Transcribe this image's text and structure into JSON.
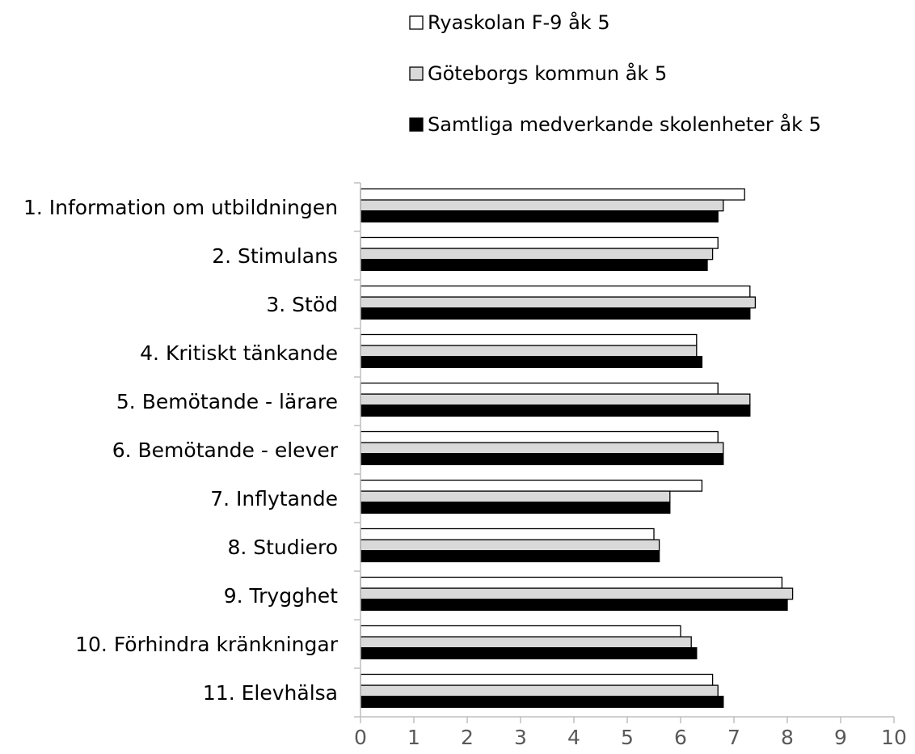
{
  "chart_data": {
    "type": "bar",
    "orientation": "horizontal",
    "title": "",
    "xlabel": "",
    "ylabel": "",
    "xlim": [
      0,
      10
    ],
    "x_ticks": [
      "0",
      "1",
      "2",
      "3",
      "4",
      "5",
      "6",
      "7",
      "8",
      "9",
      "10"
    ],
    "grid": false,
    "legend_position": "top-right",
    "categories": [
      "1. Information om utbildningen",
      "2. Stimulans",
      "3. Stöd",
      "4. Kritiskt tänkande",
      "5. Bemötande - lärare",
      "6. Bemötande - elever",
      "7. Inflytande",
      "8. Studiero",
      "9. Trygghet",
      "10. Förhindra kränkningar",
      "11. Elevhälsa"
    ],
    "series": [
      {
        "name": "Ryaskolan F-9 åk 5",
        "color": "#ffffff",
        "values": [
          7.2,
          6.7,
          7.3,
          6.3,
          6.7,
          6.7,
          6.4,
          5.5,
          7.9,
          6.0,
          6.6
        ]
      },
      {
        "name": "Göteborgs kommun åk 5",
        "color": "#d9d9d9",
        "values": [
          6.8,
          6.6,
          7.4,
          6.3,
          7.3,
          6.8,
          5.8,
          5.6,
          8.1,
          6.2,
          6.7
        ]
      },
      {
        "name": "Samtliga medverkande skolenheter åk 5",
        "color": "#000000",
        "values": [
          6.7,
          6.5,
          7.3,
          6.4,
          7.3,
          6.8,
          5.8,
          5.6,
          8.0,
          6.3,
          6.8
        ]
      }
    ]
  }
}
